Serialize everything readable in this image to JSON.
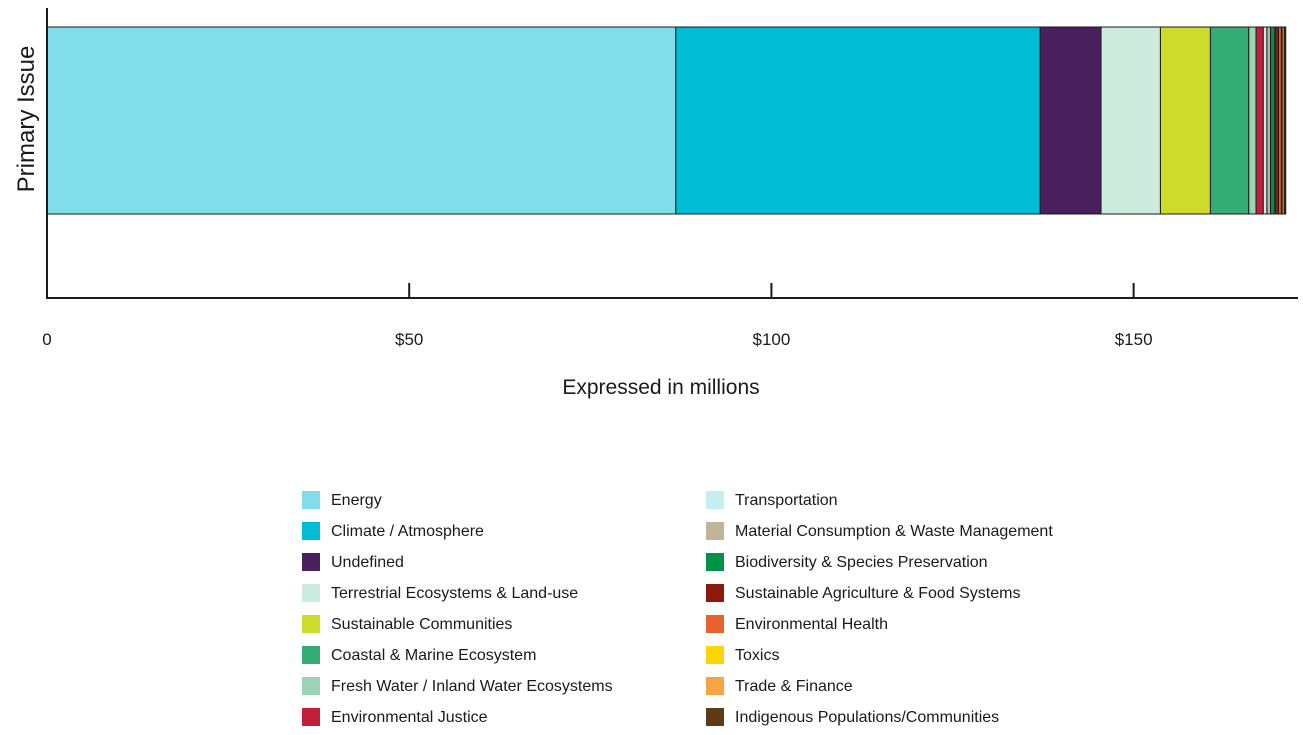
{
  "chart_data": {
    "type": "bar",
    "orientation": "horizontal-stacked",
    "ylabel": "Primary Issue",
    "xlabel": "Expressed in millions",
    "xlim": [
      0,
      172
    ],
    "x_ticks": [
      {
        "value": 0,
        "label": "0"
      },
      {
        "value": 50,
        "label": "$50"
      },
      {
        "value": 100,
        "label": "$100"
      },
      {
        "value": 150,
        "label": "$150"
      }
    ],
    "grid": false,
    "legend_position": "bottom",
    "series": [
      {
        "name": "Energy",
        "value": 86.8,
        "color": "#80deea"
      },
      {
        "name": "Climate / Atmosphere",
        "value": 50.3,
        "color": "#00bcd4"
      },
      {
        "name": "Undefined",
        "value": 8.4,
        "color": "#4a1f5e"
      },
      {
        "name": "Terrestrial Ecosystems & Land-use",
        "value": 8.2,
        "color": "#cdebdc"
      },
      {
        "name": "Sustainable Communities",
        "value": 6.9,
        "color": "#cddc2a"
      },
      {
        "name": "Coastal & Marine Ecosystem",
        "value": 5.3,
        "color": "#33ad73"
      },
      {
        "name": "Fresh Water / Inland Water Ecosystems",
        "value": 1.0,
        "color": "#9bd3b6"
      },
      {
        "name": "Environmental Justice",
        "value": 1.0,
        "color": "#c41e3a"
      },
      {
        "name": "Transportation",
        "value": 0.5,
        "color": "#c4eef2"
      },
      {
        "name": "Material Consumption & Waste Management",
        "value": 0.5,
        "color": "#c2b49a"
      },
      {
        "name": "Biodiversity & Species Preservation",
        "value": 0.6,
        "color": "#009249"
      },
      {
        "name": "Sustainable Agriculture & Food Systems",
        "value": 0.5,
        "color": "#8b1a0c"
      },
      {
        "name": "Environmental Health",
        "value": 0.4,
        "color": "#e8602c"
      },
      {
        "name": "Toxics",
        "value": 0.1,
        "color": "#ffd400"
      },
      {
        "name": "Trade & Finance",
        "value": 0.3,
        "color": "#f6a545"
      },
      {
        "name": "Indigenous Populations/Communities",
        "value": 0.2,
        "color": "#5e3a17"
      }
    ]
  }
}
